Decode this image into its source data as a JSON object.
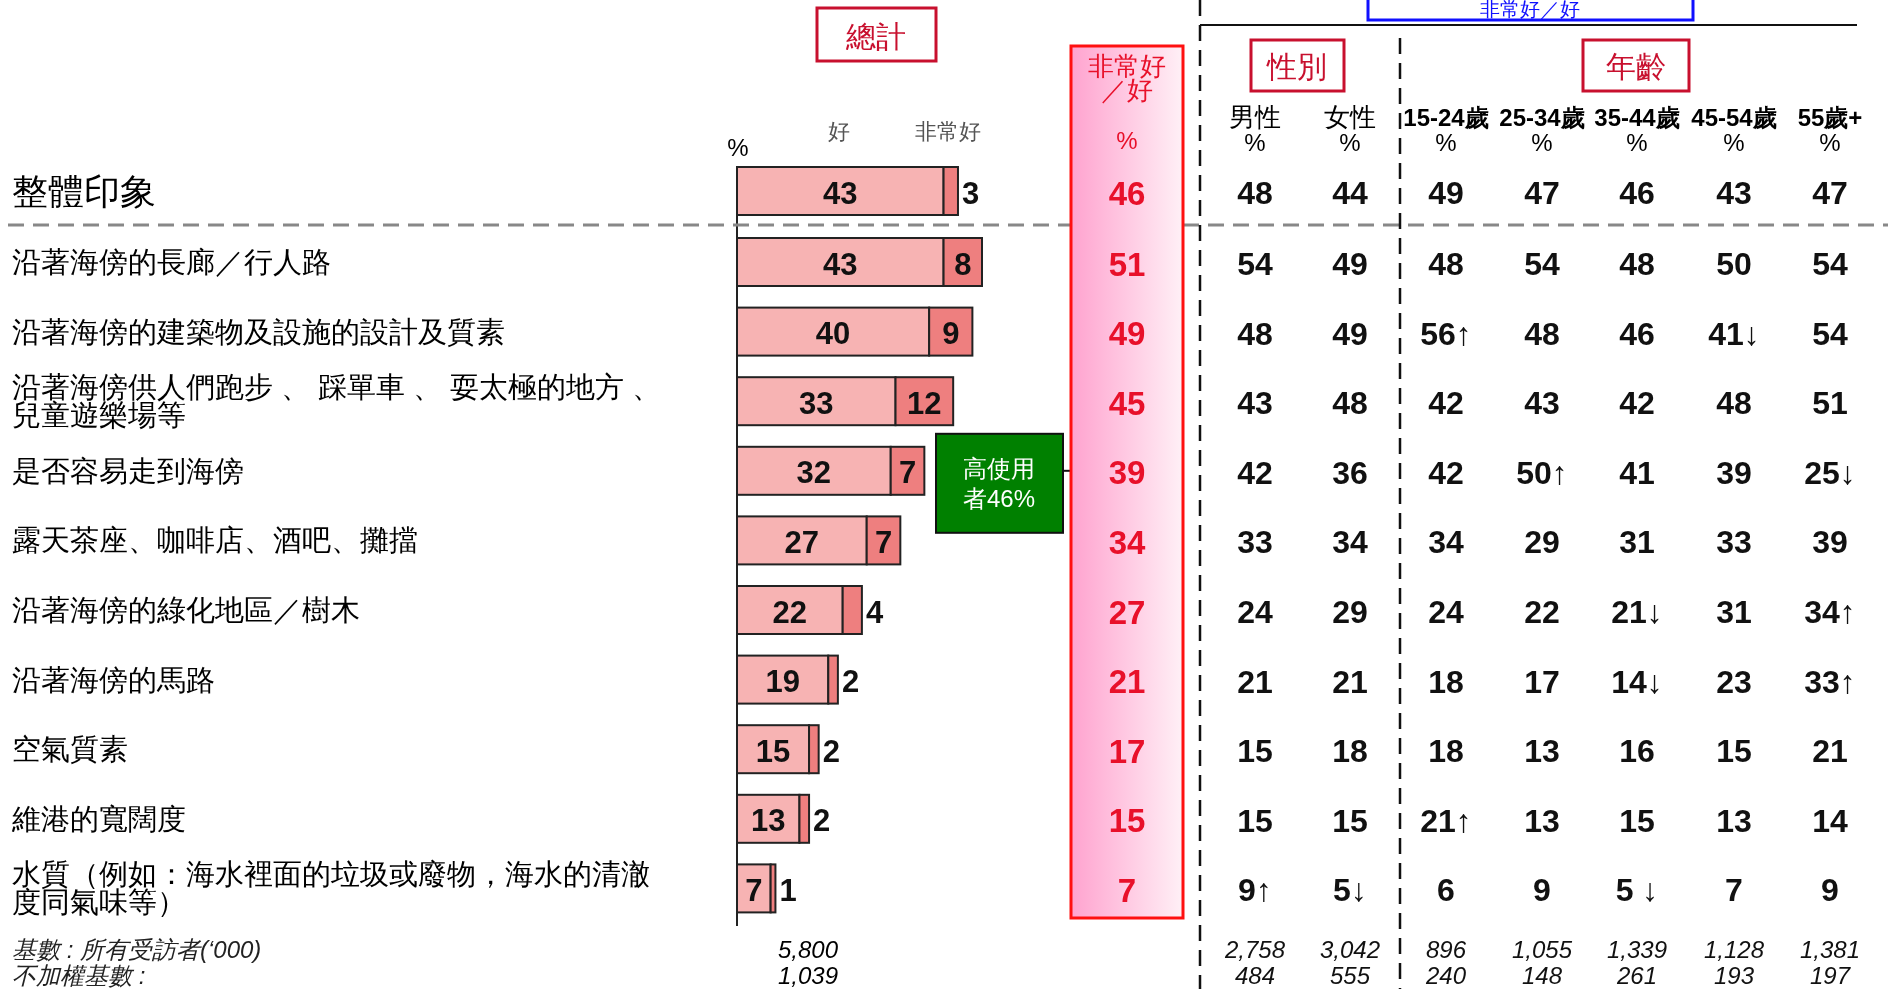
{
  "chart_data": [
    {
      "type": "bar",
      "title": "總計",
      "xlabel": "%",
      "orientation": "horizontal",
      "stacked": true,
      "data_labels": true,
      "legend": "top",
      "categories": [
        "整體印象",
        "沿著海傍的長廊／行人路",
        "沿著海傍的建築物及設施的設計及質素",
        "沿著海傍供人們跑步 、 踩單車 、 耍太極的地方 、兒童遊樂場等",
        "是否容易走到海傍",
        "露天茶座、咖啡店、酒吧、攤擋",
        "沿著海傍的綠化地區／樹木",
        "沿著海傍的馬路",
        "空氣質素",
        "維港的寬闊度",
        "水質（例如：海水裡面的垃圾或廢物，海水的清澈度同氣味等）"
      ],
      "series": [
        {
          "name": "好",
          "color": "#f7b3b3",
          "values": [
            43,
            43,
            40,
            33,
            32,
            27,
            22,
            19,
            15,
            13,
            7
          ]
        },
        {
          "name": "非常好",
          "color": "#ee7f7f",
          "values": [
            3,
            8,
            9,
            12,
            7,
            7,
            4,
            2,
            2,
            2,
            1
          ]
        }
      ],
      "annotations": [
        "高使用者46%",
        "5,800",
        "1,039"
      ]
    },
    {
      "type": "other",
      "annotations": [
        "非常好／好",
        "%",
        "46",
        "51",
        "49",
        "45",
        "39",
        "34",
        "27",
        "21",
        "17",
        "15",
        "7"
      ]
    },
    {
      "type": "other",
      "annotations": [
        "非常好／好",
        "性別",
        "年齡",
        "男性",
        "%",
        "女性",
        "%",
        "15-24歲",
        "%",
        "25-34歲",
        "%",
        "35-44歲",
        "%",
        "45-54歲",
        "%",
        "55歲+",
        "%",
        "48",
        "44",
        "49",
        "47",
        "46",
        "43",
        "47",
        "54",
        "49",
        "48",
        "54",
        "48",
        "50",
        "54",
        "48",
        "49",
        "56↑",
        "48",
        "46",
        "41↓",
        "54",
        "43",
        "48",
        "42",
        "43",
        "42",
        "48",
        "51",
        "42",
        "36",
        "42",
        "50↑",
        "41",
        "39",
        "25↓",
        "33",
        "34",
        "34",
        "29",
        "31",
        "33",
        "39",
        "24",
        "29",
        "24",
        "22",
        "21↓",
        "31",
        "34↑",
        "21",
        "21",
        "18",
        "17",
        "14↓",
        "23",
        "33↑",
        "15",
        "18",
        "18",
        "13",
        "16",
        "15",
        "21",
        "15",
        "15",
        "21↑",
        "13",
        "15",
        "13",
        "14",
        "9↑",
        "5↓",
        "6",
        "9",
        "5 ↓",
        "7",
        "9",
        "基數 : 所有受訪者(‘000)",
        "2,758",
        "3,042",
        "896",
        "1,055",
        "1,339",
        "1,128",
        "1,381",
        "不加權基數 :",
        "484",
        "555",
        "240",
        "148",
        "261",
        "193",
        "197"
      ]
    }
  ]
}
